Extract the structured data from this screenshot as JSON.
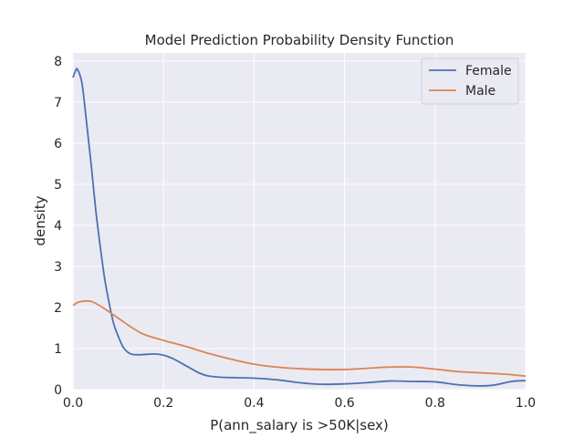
{
  "chart_data": {
    "type": "line",
    "title": "Model Prediction Probability Density Function",
    "xlabel": "P(ann_salary is >50K|sex)",
    "ylabel": "density",
    "xlim": [
      0,
      1
    ],
    "ylim": [
      0,
      8.2
    ],
    "xticks": [
      0.0,
      0.2,
      0.4,
      0.6,
      0.8,
      1.0
    ],
    "xtick_labels": [
      "0.0",
      "0.2",
      "0.4",
      "0.6",
      "0.8",
      "1.0"
    ],
    "yticks": [
      0,
      1,
      2,
      3,
      4,
      5,
      6,
      7,
      8
    ],
    "ytick_labels": [
      "0",
      "1",
      "2",
      "3",
      "4",
      "5",
      "6",
      "7",
      "8"
    ],
    "grid": true,
    "legend_position": "top-right",
    "background_color": "#EAEAF2",
    "series": [
      {
        "name": "Female",
        "color": "#4C72B0",
        "x": [
          0.0,
          0.005,
          0.01,
          0.02,
          0.03,
          0.04,
          0.05,
          0.06,
          0.07,
          0.08,
          0.09,
          0.1,
          0.11,
          0.12,
          0.13,
          0.15,
          0.18,
          0.2,
          0.22,
          0.25,
          0.28,
          0.3,
          0.33,
          0.4,
          0.45,
          0.5,
          0.55,
          0.6,
          0.65,
          0.7,
          0.75,
          0.8,
          0.85,
          0.9,
          0.93,
          0.97,
          1.0
        ],
        "y": [
          7.6,
          7.75,
          7.8,
          7.45,
          6.5,
          5.5,
          4.4,
          3.5,
          2.7,
          2.1,
          1.6,
          1.3,
          1.05,
          0.92,
          0.86,
          0.85,
          0.87,
          0.84,
          0.76,
          0.58,
          0.4,
          0.33,
          0.3,
          0.28,
          0.24,
          0.17,
          0.13,
          0.14,
          0.17,
          0.21,
          0.2,
          0.19,
          0.12,
          0.09,
          0.11,
          0.2,
          0.22
        ]
      },
      {
        "name": "Male",
        "color": "#DD8452",
        "x": [
          0.0,
          0.01,
          0.02,
          0.03,
          0.04,
          0.05,
          0.07,
          0.1,
          0.15,
          0.2,
          0.25,
          0.3,
          0.35,
          0.4,
          0.45,
          0.5,
          0.55,
          0.6,
          0.65,
          0.7,
          0.75,
          0.8,
          0.85,
          0.9,
          0.95,
          1.0
        ],
        "y": [
          2.05,
          2.12,
          2.15,
          2.16,
          2.15,
          2.1,
          1.97,
          1.74,
          1.38,
          1.2,
          1.05,
          0.88,
          0.74,
          0.62,
          0.55,
          0.51,
          0.49,
          0.49,
          0.52,
          0.55,
          0.55,
          0.5,
          0.44,
          0.41,
          0.38,
          0.33
        ]
      }
    ]
  }
}
